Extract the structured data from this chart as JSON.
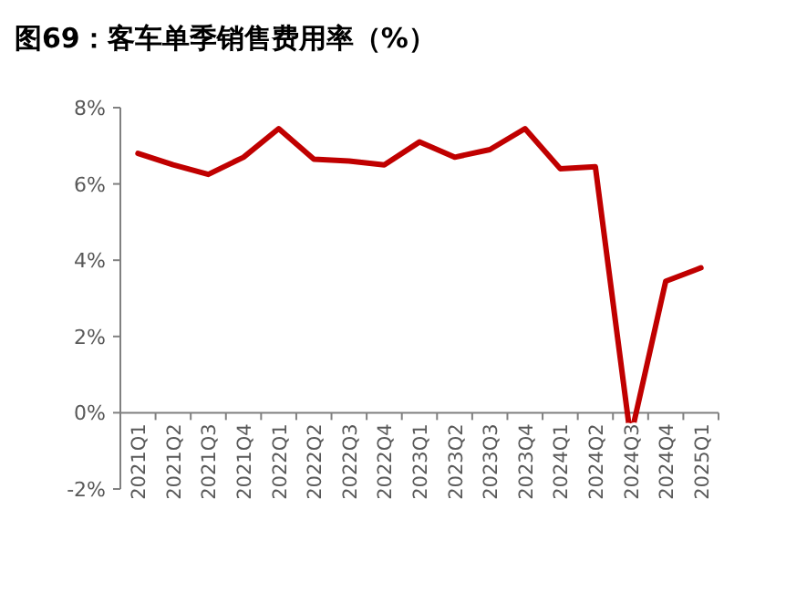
{
  "chart_data": {
    "type": "line",
    "title": "图69：客车单季销售费用率（%）",
    "categories": [
      "2021Q1",
      "2021Q2",
      "2021Q3",
      "2021Q4",
      "2022Q1",
      "2022Q2",
      "2022Q3",
      "2022Q4",
      "2023Q1",
      "2023Q2",
      "2023Q3",
      "2023Q4",
      "2024Q1",
      "2024Q2",
      "2024Q3",
      "2024Q4",
      "2025Q1"
    ],
    "series": [
      {
        "color": "#c00000",
        "values": [
          6.8,
          6.5,
          6.25,
          6.7,
          7.45,
          6.65,
          6.6,
          6.5,
          7.1,
          6.7,
          6.9,
          7.45,
          6.4,
          6.45,
          -0.65,
          3.45,
          3.8
        ]
      }
    ],
    "ylim": [
      -2,
      8
    ],
    "yticks": [
      {
        "value": -2,
        "label": "-2%"
      },
      {
        "value": 0,
        "label": "0%"
      },
      {
        "value": 2,
        "label": "2%"
      },
      {
        "value": 4,
        "label": "4%"
      },
      {
        "value": 6,
        "label": "6%"
      },
      {
        "value": 8,
        "label": "8%"
      }
    ],
    "grid": false,
    "marker": "none",
    "line_style": "solid"
  }
}
